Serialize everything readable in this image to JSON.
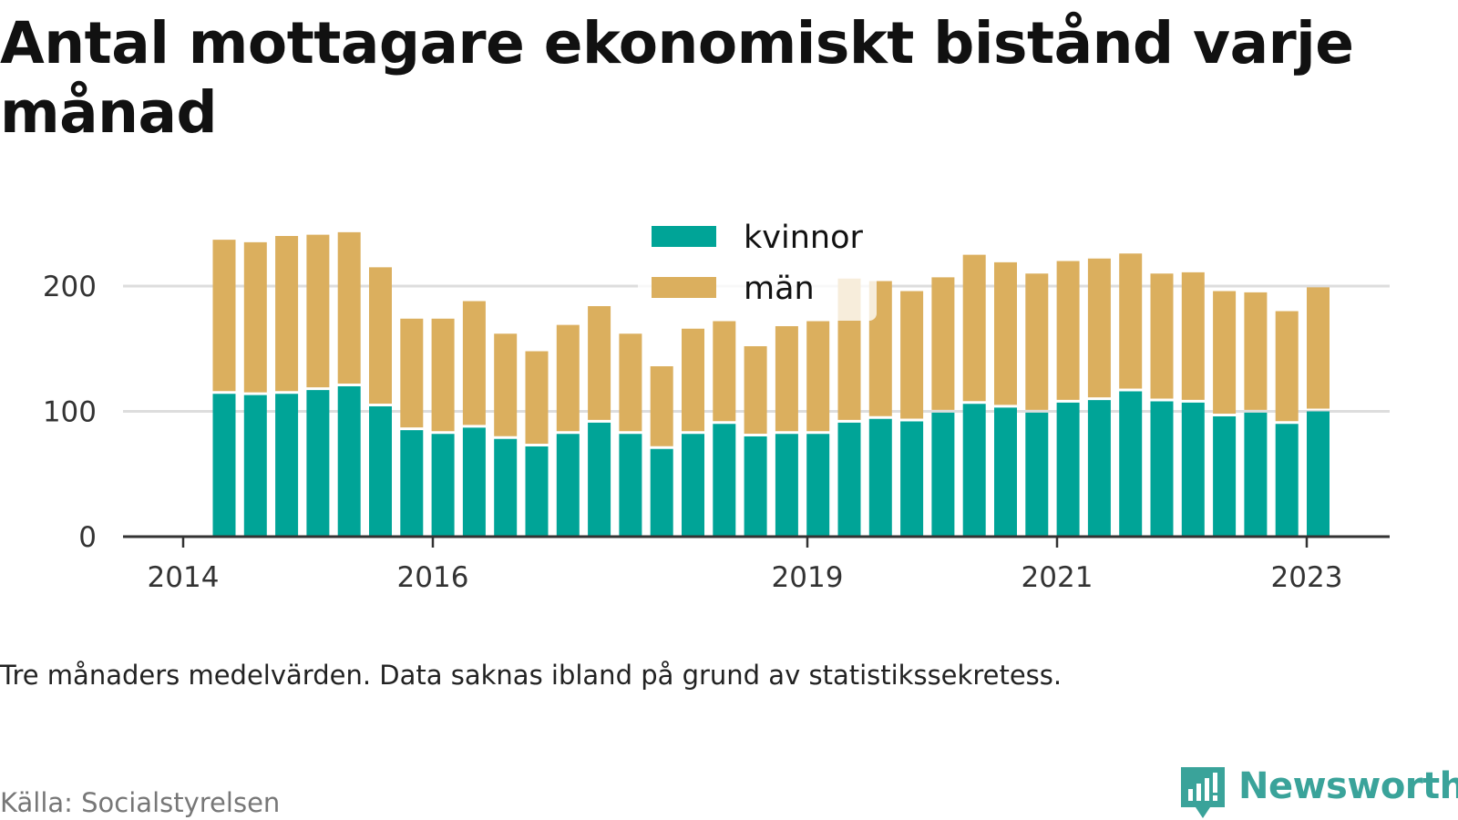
{
  "chart_data": {
    "type": "bar",
    "stacked": true,
    "title": "Antal mottagare ekonomiskt bistånd varje månad",
    "note": "Tre månaders medelvärden. Data saknas ibland på grund av statistikssekretess.",
    "source": "Källa: Socialstyrelsen",
    "x_ticks": [
      "2014",
      "2016",
      "2019",
      "2021",
      "2023"
    ],
    "y_ticks": [
      "0",
      "100",
      "200"
    ],
    "ylim": [
      0,
      255
    ],
    "legend_placement": "top-center",
    "grid": true,
    "series": [
      {
        "name": "kvinnor",
        "color": "#00a497",
        "values": [
          114,
          113,
          114,
          117,
          120,
          104,
          85,
          82,
          87,
          78,
          72,
          82,
          91,
          82,
          70,
          82,
          90,
          80,
          82,
          82,
          91,
          94,
          92,
          99,
          106,
          103,
          99,
          107,
          109,
          116,
          108,
          107,
          96,
          99,
          90,
          100
        ]
      },
      {
        "name": "män",
        "color": "#dbaf5e",
        "values": [
          123,
          122,
          126,
          124,
          123,
          111,
          89,
          92,
          101,
          84,
          76,
          87,
          93,
          80,
          66,
          84,
          82,
          72,
          86,
          90,
          115,
          110,
          104,
          108,
          119,
          116,
          111,
          113,
          113,
          110,
          102,
          104,
          100,
          96,
          90,
          99
        ]
      }
    ]
  },
  "brand": {
    "name": "Newsworthy",
    "icon": "newsworthy-logo-icon",
    "color": "#3aa39a"
  }
}
